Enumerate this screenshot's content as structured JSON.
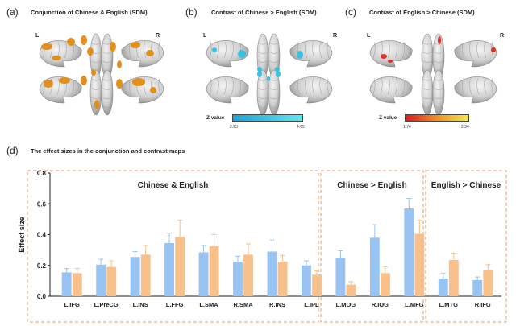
{
  "panels": [
    {
      "label": "(a)",
      "title": "Conjunction of Chinese & English (SDM)"
    },
    {
      "label": "(b)",
      "title": "Contrast of Chinese > English (SDM)"
    },
    {
      "label": "(c)",
      "title": "Contrast of English > Chinese (SDM)"
    }
  ],
  "side_labels": {
    "left": "L",
    "right": "R"
  },
  "colorbars": {
    "b": {
      "label": "Z  value",
      "min": "2.93",
      "max": "4.65",
      "colors": [
        "#1aa3d6",
        "#5fe6f5"
      ]
    },
    "c": {
      "label": "Z  value",
      "min": "1.74",
      "max": "2.34",
      "colors": [
        "#e3161b",
        "#f5e84a"
      ]
    }
  },
  "brain_colors": {
    "a": "#e08a12",
    "b": "#2fc3e0",
    "c": "#e3261b"
  },
  "panel_d": {
    "label": "(d)",
    "title": "The effect sizes in the conjunction and contrast maps"
  },
  "chart_data": {
    "type": "bar",
    "ylabel": "Effect size",
    "ylim": [
      0,
      0.8
    ],
    "yticks": [
      "0.0",
      "0.2",
      "0.4",
      "0.6",
      "0.8"
    ],
    "categories": [
      "L.IFG",
      "L.PreCG",
      "L.INS",
      "L.FFG",
      "L.SMA",
      "R.SMA",
      "R.INS",
      "L.IPL",
      "L.MOG",
      "R.IOG",
      "L.MFG",
      "L.MTG",
      "R.IFG"
    ],
    "series": [
      {
        "values": [
          0.155,
          0.205,
          0.255,
          0.345,
          0.285,
          0.225,
          0.29,
          0.2,
          0.25,
          0.38,
          0.57,
          0.115,
          0.105
        ],
        "errors": [
          0.025,
          0.035,
          0.035,
          0.065,
          0.045,
          0.035,
          0.075,
          0.03,
          0.045,
          0.085,
          0.065,
          0.035,
          0.02
        ],
        "color": "#98c3f2"
      },
      {
        "values": [
          0.15,
          0.19,
          0.27,
          0.385,
          0.325,
          0.27,
          0.225,
          0.14,
          0.075,
          0.15,
          0.405,
          0.235,
          0.17
        ],
        "errors": [
          0.03,
          0.04,
          0.06,
          0.11,
          0.075,
          0.07,
          0.04,
          0.025,
          0.02,
          0.04,
          0.09,
          0.045,
          0.035
        ],
        "color": "#f8c08a"
      }
    ],
    "groups": [
      {
        "label": "Chinese & English",
        "start": 0,
        "end": 7
      },
      {
        "label": "Chinese > English",
        "start": 8,
        "end": 10
      },
      {
        "label": "English > Chinese",
        "start": 11,
        "end": 12
      }
    ]
  }
}
